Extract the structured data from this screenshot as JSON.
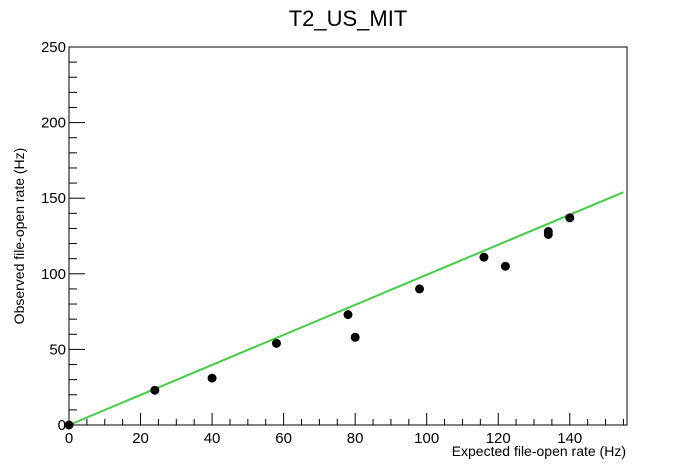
{
  "chart_data": {
    "type": "scatter",
    "title": "T2_US_MIT",
    "xlabel": "Expected file-open rate (Hz)",
    "ylabel": "Observed file-open rate (Hz)",
    "xlim": [
      0,
      156
    ],
    "ylim": [
      0,
      250
    ],
    "x_ticks": [
      0,
      20,
      40,
      60,
      80,
      100,
      120,
      140
    ],
    "y_ticks": [
      0,
      50,
      100,
      150,
      200,
      250
    ],
    "grid": false,
    "series": [
      {
        "x": [
          0,
          24,
          40,
          58,
          78,
          80,
          98,
          116,
          122,
          134,
          134,
          140
        ],
        "y": [
          0,
          23,
          31,
          54,
          73,
          58,
          90,
          111,
          105,
          128,
          126,
          137
        ],
        "color": "#000000"
      }
    ],
    "fit_line": {
      "x": [
        0,
        155
      ],
      "y": [
        0,
        154
      ],
      "color": "#44cc44"
    }
  }
}
